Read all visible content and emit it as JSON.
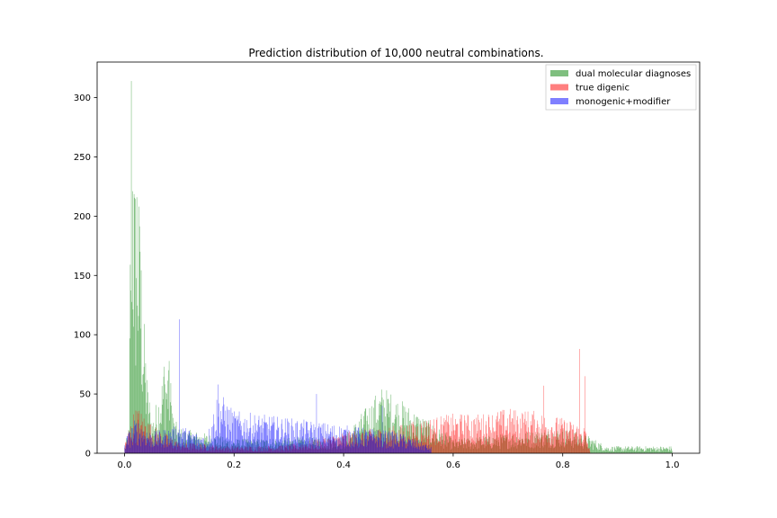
{
  "chart_data": {
    "type": "bar",
    "subtype": "overlapping-histogram",
    "title": "Prediction distribution of 10,000 neutral combinations.",
    "xlabel": "",
    "ylabel": "",
    "xlim": [
      -0.05,
      1.05
    ],
    "ylim": [
      0,
      330
    ],
    "x_ticks": [
      0.0,
      0.2,
      0.4,
      0.6,
      0.8,
      1.0
    ],
    "x_tick_labels": [
      "0.0",
      "0.2",
      "0.4",
      "0.6",
      "0.8",
      "1.0"
    ],
    "y_ticks": [
      0,
      50,
      100,
      150,
      200,
      250,
      300
    ],
    "y_tick_labels": [
      "0",
      "50",
      "100",
      "150",
      "200",
      "250",
      "300"
    ],
    "grid": false,
    "legend_position": "top-right",
    "series": [
      {
        "name": "dual molecular diagnoses",
        "color": "#008000",
        "opacity": 0.5,
        "x_range": [
          0.0,
          1.0
        ],
        "envelope": [
          [
            0.0,
            5
          ],
          [
            0.008,
            20
          ],
          [
            0.012,
            314
          ],
          [
            0.018,
            200
          ],
          [
            0.022,
            216
          ],
          [
            0.028,
            170
          ],
          [
            0.035,
            100
          ],
          [
            0.042,
            50
          ],
          [
            0.05,
            25
          ],
          [
            0.06,
            40
          ],
          [
            0.07,
            60
          ],
          [
            0.08,
            72
          ],
          [
            0.09,
            25
          ],
          [
            0.1,
            18
          ],
          [
            0.2,
            10
          ],
          [
            0.4,
            12
          ],
          [
            0.47,
            48
          ],
          [
            0.6,
            10
          ],
          [
            0.8,
            18
          ],
          [
            0.85,
            12
          ],
          [
            0.88,
            5
          ],
          [
            1.0,
            5
          ]
        ],
        "peaks": [
          [
            0.012,
            314
          ],
          [
            0.022,
            216
          ],
          [
            0.028,
            170
          ],
          [
            0.072,
            73
          ],
          [
            0.08,
            70
          ],
          [
            0.47,
            47
          ]
        ]
      },
      {
        "name": "true digenic",
        "color": "#ff0000",
        "opacity": 0.5,
        "x_range": [
          0.0,
          0.85
        ],
        "envelope": [
          [
            0.0,
            8
          ],
          [
            0.02,
            35
          ],
          [
            0.05,
            20
          ],
          [
            0.1,
            8
          ],
          [
            0.2,
            5
          ],
          [
            0.3,
            6
          ],
          [
            0.4,
            15
          ],
          [
            0.5,
            20
          ],
          [
            0.55,
            25
          ],
          [
            0.6,
            28
          ],
          [
            0.65,
            28
          ],
          [
            0.7,
            32
          ],
          [
            0.75,
            30
          ],
          [
            0.8,
            25
          ],
          [
            0.84,
            20
          ],
          [
            0.85,
            0
          ]
        ],
        "peaks": [
          [
            0.02,
            36
          ],
          [
            0.765,
            57
          ],
          [
            0.83,
            88
          ],
          [
            0.84,
            65
          ]
        ]
      },
      {
        "name": "monogenic+modifier",
        "color": "#0000ff",
        "opacity": 0.5,
        "x_range": [
          0.0,
          0.56
        ],
        "envelope": [
          [
            0.0,
            10
          ],
          [
            0.02,
            25
          ],
          [
            0.05,
            15
          ],
          [
            0.1,
            20
          ],
          [
            0.15,
            12
          ],
          [
            0.17,
            45
          ],
          [
            0.2,
            30
          ],
          [
            0.3,
            25
          ],
          [
            0.4,
            20
          ],
          [
            0.5,
            15
          ],
          [
            0.56,
            5
          ]
        ],
        "peaks": [
          [
            0.1,
            113
          ],
          [
            0.17,
            58
          ],
          [
            0.35,
            50
          ],
          [
            0.47,
            40
          ]
        ]
      }
    ]
  }
}
